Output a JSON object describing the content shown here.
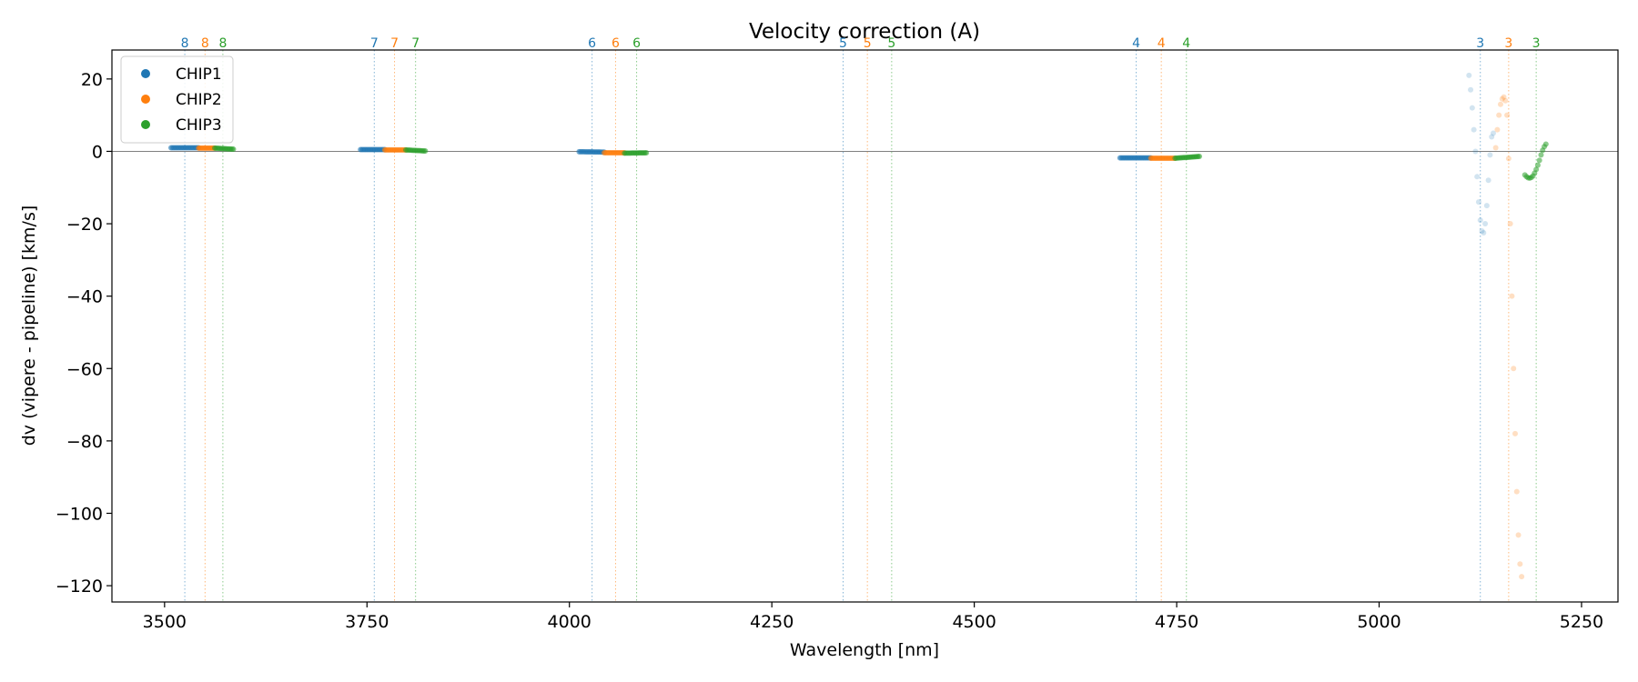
{
  "chart_data": {
    "type": "scatter",
    "title": "Velocity correction (A)",
    "xlabel": "Wavelength [nm]",
    "ylabel": "dv (vipere - pipeline) [km/s]",
    "xlim": [
      3435,
      5295
    ],
    "ylim": [
      -124.5,
      28
    ],
    "xticks": [
      3500,
      3750,
      4000,
      4250,
      4500,
      4750,
      5000,
      5250
    ],
    "yticks": [
      20,
      0,
      -20,
      -40,
      -60,
      -80,
      -100,
      -120
    ],
    "zero_line": 0,
    "legend_position": "upper-left",
    "series": [
      {
        "name": "CHIP1",
        "color": "#1f77b4"
      },
      {
        "name": "CHIP2",
        "color": "#ff7f0e"
      },
      {
        "name": "CHIP3",
        "color": "#2ca02c"
      }
    ],
    "orders": [
      {
        "order": "8",
        "lines": [
          3525,
          3550,
          3572
        ]
      },
      {
        "order": "7",
        "lines": [
          3759,
          3784,
          3810
        ]
      },
      {
        "order": "6",
        "lines": [
          4028,
          4057,
          4083
        ]
      },
      {
        "order": "5",
        "lines": [
          4338,
          4368,
          4398
        ]
      },
      {
        "order": "4",
        "lines": [
          4700,
          4731,
          4762
        ]
      },
      {
        "order": "3",
        "lines": [
          5125,
          5160,
          5194
        ]
      }
    ],
    "segments": [
      {
        "series": 0,
        "x": [
          3508,
          3542
        ],
        "y": [
          1.0,
          1.0
        ],
        "n": 20
      },
      {
        "series": 1,
        "x": [
          3542,
          3562
        ],
        "y": [
          0.9,
          0.9
        ],
        "n": 14
      },
      {
        "series": 2,
        "x": [
          3562,
          3585
        ],
        "y": [
          0.9,
          0.6
        ],
        "n": 14
      },
      {
        "series": 0,
        "x": [
          3742,
          3772
        ],
        "y": [
          0.5,
          0.5
        ],
        "n": 18
      },
      {
        "series": 1,
        "x": [
          3772,
          3798
        ],
        "y": [
          0.4,
          0.4
        ],
        "n": 16
      },
      {
        "series": 2,
        "x": [
          3798,
          3822
        ],
        "y": [
          0.4,
          0.1
        ],
        "n": 14
      },
      {
        "series": 0,
        "x": [
          4012,
          4043
        ],
        "y": [
          -0.1,
          -0.2
        ],
        "n": 18
      },
      {
        "series": 1,
        "x": [
          4043,
          4068
        ],
        "y": [
          -0.4,
          -0.4
        ],
        "n": 15
      },
      {
        "series": 2,
        "x": [
          4068,
          4095
        ],
        "y": [
          -0.5,
          -0.4
        ],
        "n": 16
      },
      {
        "series": 0,
        "x": [
          4680,
          4718
        ],
        "y": [
          -1.8,
          -1.8
        ],
        "n": 22
      },
      {
        "series": 1,
        "x": [
          4718,
          4748
        ],
        "y": [
          -1.9,
          -1.9
        ],
        "n": 18
      },
      {
        "series": 2,
        "x": [
          4748,
          4778
        ],
        "y": [
          -1.9,
          -1.4
        ],
        "n": 18
      }
    ],
    "curves": [
      {
        "series": 0,
        "alpha": 0.2,
        "points": [
          [
            5111,
            21
          ],
          [
            5113,
            17
          ],
          [
            5115,
            12
          ],
          [
            5117,
            6
          ],
          [
            5119,
            0
          ],
          [
            5121,
            -7
          ],
          [
            5123,
            -14
          ],
          [
            5125,
            -19
          ],
          [
            5127,
            -22
          ],
          [
            5129,
            -22.5
          ],
          [
            5131,
            -20
          ],
          [
            5133,
            -15
          ],
          [
            5135,
            -8
          ],
          [
            5137,
            -1
          ],
          [
            5139,
            4
          ],
          [
            5141,
            5
          ]
        ]
      },
      {
        "series": 1,
        "alpha": 0.25,
        "points": [
          [
            5144,
            1
          ],
          [
            5146,
            6
          ],
          [
            5148,
            10
          ],
          [
            5150,
            13
          ],
          [
            5152,
            14.5
          ],
          [
            5154,
            15
          ],
          [
            5156,
            14
          ],
          [
            5158,
            10
          ],
          [
            5160,
            -2
          ],
          [
            5162,
            -20
          ],
          [
            5164,
            -40
          ],
          [
            5166,
            -60
          ],
          [
            5168,
            -78
          ],
          [
            5170,
            -94
          ],
          [
            5172,
            -106
          ],
          [
            5174,
            -114
          ],
          [
            5176,
            -117.5
          ]
        ]
      },
      {
        "series": 2,
        "alpha": 0.55,
        "points": [
          [
            5180,
            -6.5
          ],
          [
            5182,
            -7
          ],
          [
            5184,
            -7.3
          ],
          [
            5186,
            -7.4
          ],
          [
            5188,
            -7.2
          ],
          [
            5190,
            -6.8
          ],
          [
            5192,
            -6
          ],
          [
            5194,
            -5
          ],
          [
            5196,
            -3.8
          ],
          [
            5198,
            -2.5
          ],
          [
            5200,
            -1
          ],
          [
            5202,
            0.3
          ],
          [
            5204,
            1.3
          ],
          [
            5206,
            2
          ]
        ]
      }
    ]
  }
}
